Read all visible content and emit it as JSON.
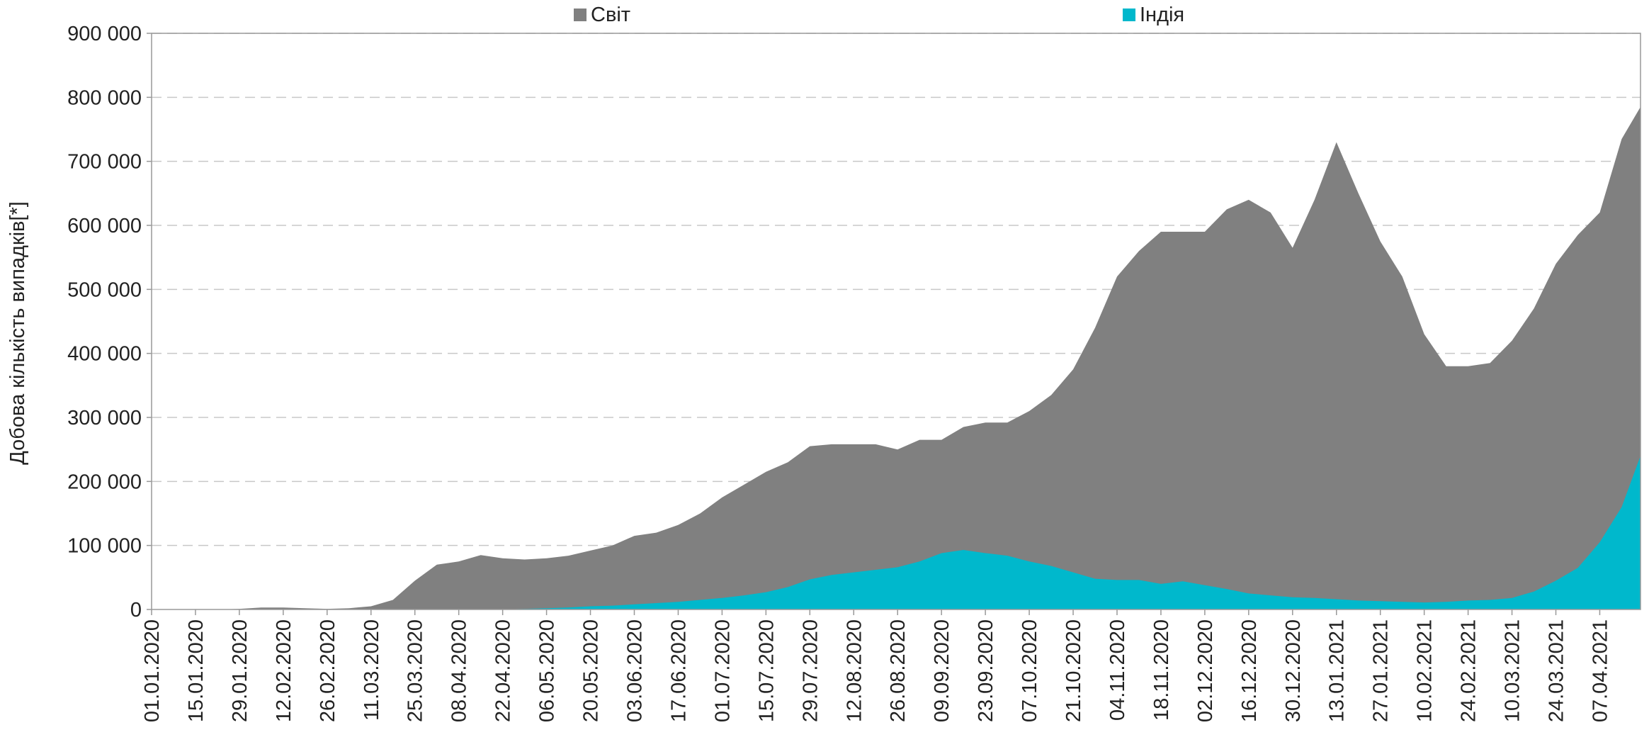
{
  "chart_data": {
    "type": "area",
    "ylabel": "Добова кількість випадків[*]",
    "x": [
      "01.01.2020",
      "08.01.2020",
      "15.01.2020",
      "22.01.2020",
      "29.01.2020",
      "05.02.2020",
      "12.02.2020",
      "19.02.2020",
      "26.02.2020",
      "04.03.2020",
      "11.03.2020",
      "18.03.2020",
      "25.03.2020",
      "01.04.2020",
      "08.04.2020",
      "15.04.2020",
      "22.04.2020",
      "29.04.2020",
      "06.05.2020",
      "13.05.2020",
      "20.05.2020",
      "27.05.2020",
      "03.06.2020",
      "10.06.2020",
      "17.06.2020",
      "24.06.2020",
      "01.07.2020",
      "08.07.2020",
      "15.07.2020",
      "22.07.2020",
      "29.07.2020",
      "05.08.2020",
      "12.08.2020",
      "19.08.2020",
      "26.08.2020",
      "02.09.2020",
      "09.09.2020",
      "16.09.2020",
      "23.09.2020",
      "30.09.2020",
      "07.10.2020",
      "14.10.2020",
      "21.10.2020",
      "28.10.2020",
      "04.11.2020",
      "11.11.2020",
      "18.11.2020",
      "25.11.2020",
      "02.12.2020",
      "09.12.2020",
      "16.12.2020",
      "23.12.2020",
      "30.12.2020",
      "06.01.2021",
      "13.01.2021",
      "20.01.2021",
      "27.01.2021",
      "03.02.2021",
      "10.02.2021",
      "17.02.2021",
      "24.02.2021",
      "03.03.2021",
      "10.03.2021",
      "17.03.2021",
      "24.03.2021",
      "31.03.2021",
      "07.04.2021",
      "14.04.2021",
      "20.04.2021"
    ],
    "series": [
      {
        "name": "Світ",
        "color": "#808080",
        "values": [
          0,
          0,
          0,
          0,
          1000,
          3000,
          3000,
          2000,
          1000,
          2000,
          5000,
          15000,
          45000,
          70000,
          75000,
          85000,
          80000,
          78000,
          80000,
          84000,
          92000,
          100000,
          115000,
          120000,
          132000,
          150000,
          175000,
          195000,
          215000,
          230000,
          255000,
          258000,
          258000,
          258000,
          250000,
          265000,
          265000,
          285000,
          292000,
          292000,
          310000,
          335000,
          375000,
          440000,
          520000,
          560000,
          590000,
          590000,
          590000,
          625000,
          640000,
          620000,
          565000,
          640000,
          730000,
          650000,
          575000,
          520000,
          430000,
          380000,
          380000,
          385000,
          420000,
          470000,
          540000,
          585000,
          620000,
          735000,
          785000
        ]
      },
      {
        "name": "Індія",
        "color": "#00b8cc",
        "values": [
          0,
          0,
          0,
          0,
          0,
          0,
          0,
          0,
          0,
          0,
          0,
          0,
          0,
          0,
          0,
          0,
          0,
          1000,
          2000,
          3000,
          5000,
          6000,
          8000,
          10000,
          12000,
          15000,
          18000,
          22000,
          27000,
          35000,
          47000,
          54000,
          58000,
          62000,
          66000,
          75000,
          88000,
          93000,
          88000,
          84000,
          75000,
          68000,
          58000,
          48000,
          46000,
          46000,
          40000,
          44000,
          38000,
          32000,
          25000,
          22000,
          19000,
          18000,
          16000,
          14000,
          13000,
          12000,
          11000,
          12000,
          14000,
          15000,
          18000,
          28000,
          45000,
          65000,
          105000,
          160000,
          240000
        ]
      }
    ],
    "xlim": [
      "01.01.2020",
      "20.04.2021"
    ],
    "xticks": [
      "01.01.2020",
      "15.01.2020",
      "29.01.2020",
      "12.02.2020",
      "26.02.2020",
      "11.03.2020",
      "25.03.2020",
      "08.04.2020",
      "22.04.2020",
      "06.05.2020",
      "20.05.2020",
      "03.06.2020",
      "17.06.2020",
      "01.07.2020",
      "15.07.2020",
      "29.07.2020",
      "12.08.2020",
      "26.08.2020",
      "09.09.2020",
      "23.09.2020",
      "07.10.2020",
      "21.10.2020",
      "04.11.2020",
      "18.11.2020",
      "02.12.2020",
      "16.12.2020",
      "30.12.2020",
      "13.01.2021",
      "27.01.2021",
      "10.02.2021",
      "24.02.2021",
      "10.03.2021",
      "24.03.2021",
      "07.04.2021"
    ],
    "ylim": [
      0,
      900000
    ],
    "yticks": [
      0,
      {
        "value": 100000,
        "label": "100 000"
      },
      {
        "value": 200000,
        "label": "200 000"
      },
      {
        "value": 300000,
        "label": "300 000"
      },
      {
        "value": 400000,
        "label": "400 000"
      },
      {
        "value": 500000,
        "label": "500 000"
      },
      {
        "value": 600000,
        "label": "600 000"
      },
      {
        "value": 700000,
        "label": "700 000"
      },
      {
        "value": 800000,
        "label": "800 000"
      },
      {
        "value": 900000,
        "label": "900 000"
      }
    ],
    "grid": true,
    "legend": "top"
  }
}
